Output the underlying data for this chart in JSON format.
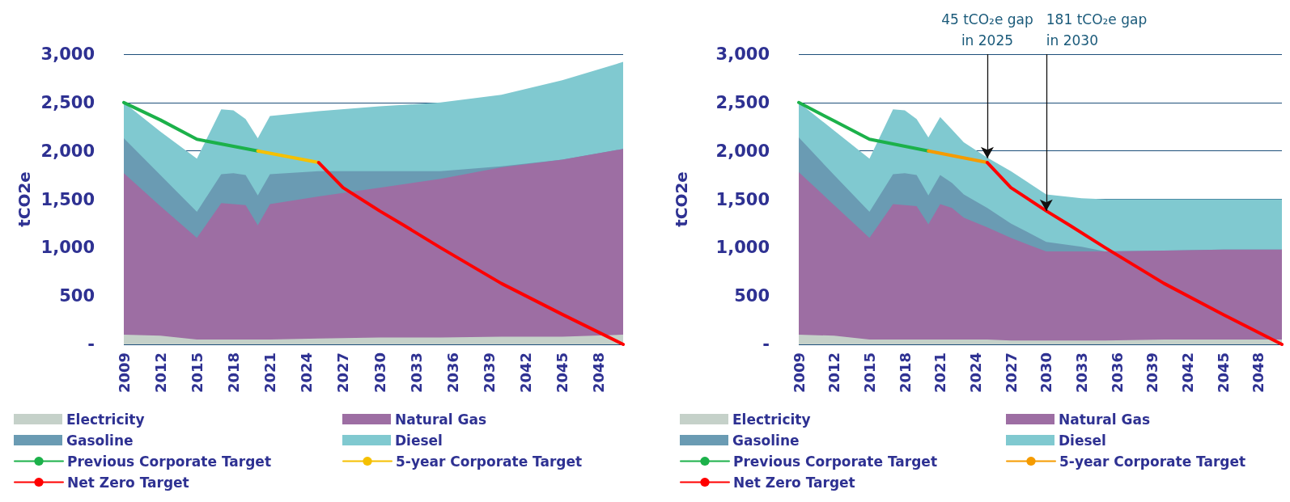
{
  "chart_data": [
    {
      "type": "area",
      "stacked": true,
      "ylabel": "tCO2e",
      "legend": "bottom",
      "grid": "y",
      "marker": "none",
      "line_style": "solid",
      "x": [
        2009,
        2012,
        2015,
        2017,
        2018,
        2019,
        2020,
        2021,
        2025,
        2030,
        2035,
        2040,
        2045,
        2050
      ],
      "xlim": [
        2009,
        2050
      ],
      "xticks": [
        2009,
        2012,
        2015,
        2018,
        2021,
        2024,
        2027,
        2030,
        2033,
        2036,
        2039,
        2042,
        2045,
        2048
      ],
      "ylim": [
        0,
        3000
      ],
      "yticks": [
        {
          "value": 0,
          "label": "-"
        },
        500,
        {
          "value": 1000,
          "label": "1,000"
        },
        {
          "value": 1500,
          "label": "1,500"
        },
        {
          "value": 2000,
          "label": "2,000"
        },
        {
          "value": 2500,
          "label": "2,500"
        },
        {
          "value": 3000,
          "label": "3,000"
        }
      ],
      "series": [
        {
          "name": "Electricity",
          "color": "#c5d1c9",
          "values": [
            100,
            90,
            50,
            50,
            50,
            50,
            50,
            50,
            60,
            70,
            70,
            80,
            80,
            100
          ]
        },
        {
          "name": "Natural Gas",
          "color": "#9d6ea3",
          "values": [
            1670,
            1340,
            1050,
            1410,
            1400,
            1390,
            1180,
            1400,
            1470,
            1550,
            1640,
            1750,
            1830,
            1920
          ]
        },
        {
          "name": "Gasoline",
          "color": "#6a9bb3",
          "values": [
            360,
            320,
            270,
            300,
            320,
            310,
            310,
            310,
            260,
            170,
            80,
            10,
            0,
            0
          ]
        },
        {
          "name": "Diesel",
          "color": "#80c9d0",
          "values": [
            370,
            450,
            550,
            670,
            650,
            580,
            590,
            600,
            620,
            670,
            710,
            740,
            820,
            900
          ]
        },
        {
          "name": "Previous Corporate Target",
          "type": "line",
          "color": "#1cb14a",
          "x": [
            2009,
            2012,
            2015,
            2020
          ],
          "values": [
            2500,
            2320,
            2120,
            2000
          ]
        },
        {
          "name": "5-year Corporate Target",
          "type": "line",
          "color": "#f5c000",
          "x": [
            2020,
            2025
          ],
          "values": [
            2000,
            1880
          ]
        },
        {
          "name": "Net Zero Target",
          "type": "line",
          "color": "#ff0000",
          "x": [
            2025,
            2027,
            2030,
            2032,
            2035,
            2040,
            2045,
            2050
          ],
          "values": [
            1880,
            1620,
            1380,
            1230,
            1000,
            630,
            310,
            0
          ]
        }
      ]
    },
    {
      "type": "area",
      "stacked": true,
      "ylabel": "tCO2e",
      "legend": "bottom",
      "grid": "y",
      "marker": "none",
      "line_style": "solid",
      "x": [
        2009,
        2012,
        2015,
        2017,
        2018,
        2019,
        2020,
        2021,
        2022,
        2023,
        2025,
        2027,
        2030,
        2033,
        2035,
        2040,
        2045,
        2050
      ],
      "xlim": [
        2009,
        2050
      ],
      "xticks": [
        2009,
        2012,
        2015,
        2018,
        2021,
        2024,
        2027,
        2030,
        2033,
        2036,
        2039,
        2042,
        2045,
        2048
      ],
      "ylim": [
        0,
        3000
      ],
      "yticks": [
        {
          "value": 0,
          "label": "-"
        },
        500,
        {
          "value": 1000,
          "label": "1,000"
        },
        {
          "value": 1500,
          "label": "1,500"
        },
        {
          "value": 2000,
          "label": "2,000"
        },
        {
          "value": 2500,
          "label": "2,500"
        },
        {
          "value": 3000,
          "label": "3,000"
        }
      ],
      "annotations": [
        {
          "text": "45 tCO₂e gap\nin 2025",
          "x": 2025,
          "y": 1925
        },
        {
          "text": "181 tCO₂e gap\nin 2030",
          "x": 2030,
          "y": 1380
        }
      ],
      "series": [
        {
          "name": "Electricity",
          "color": "#c5d1c9",
          "values": [
            100,
            90,
            50,
            50,
            50,
            50,
            50,
            50,
            50,
            50,
            50,
            40,
            40,
            40,
            40,
            50,
            50,
            50
          ]
        },
        {
          "name": "Natural Gas",
          "color": "#9d6ea3",
          "values": [
            1680,
            1350,
            1050,
            1400,
            1390,
            1380,
            1190,
            1400,
            1360,
            1260,
            1160,
            1060,
            920,
            920,
            920,
            920,
            930,
            930
          ]
        },
        {
          "name": "Gasoline",
          "color": "#6a9bb3",
          "values": [
            360,
            310,
            270,
            310,
            330,
            320,
            300,
            300,
            260,
            240,
            200,
            150,
            100,
            50,
            0,
            0,
            0,
            0
          ]
        },
        {
          "name": "Diesel",
          "color": "#80c9d0",
          "values": [
            360,
            460,
            550,
            670,
            650,
            580,
            600,
            600,
            550,
            540,
            520,
            540,
            490,
            500,
            540,
            530,
            520,
            520
          ]
        },
        {
          "name": "Previous Corporate Target",
          "type": "line",
          "color": "#1cb14a",
          "x": [
            2009,
            2012,
            2015,
            2020
          ],
          "values": [
            2500,
            2310,
            2120,
            2000
          ]
        },
        {
          "name": "5-year Corporate Target",
          "type": "line",
          "color": "#f59b00",
          "x": [
            2020,
            2025
          ],
          "values": [
            2000,
            1880
          ]
        },
        {
          "name": "Net Zero Target",
          "type": "line",
          "color": "#ff0000",
          "x": [
            2025,
            2027,
            2030,
            2032,
            2035,
            2040,
            2045,
            2050
          ],
          "values": [
            1880,
            1620,
            1380,
            1230,
            1000,
            630,
            310,
            0
          ]
        }
      ]
    }
  ]
}
